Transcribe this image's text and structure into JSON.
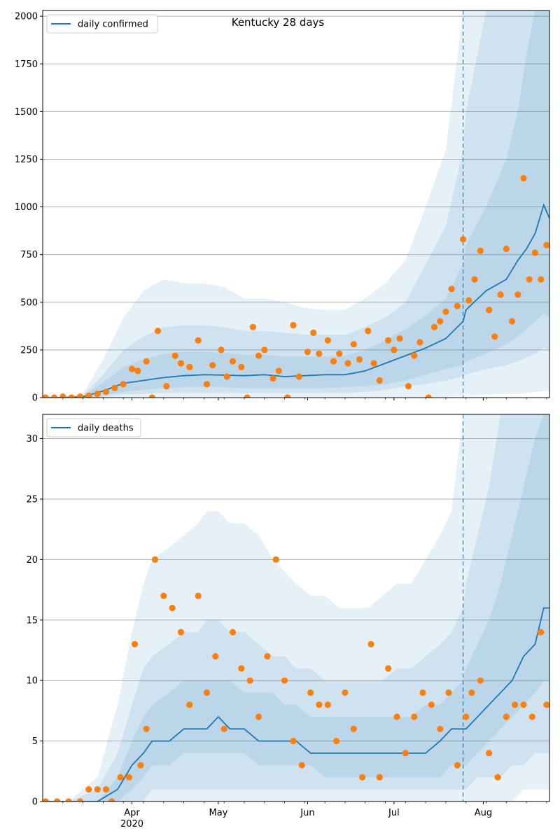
{
  "figure_title": "Kentucky 28 days",
  "colors": {
    "model_line": "#1f77b4",
    "observed_points": "#ff7f0e",
    "band": "#1f77b4",
    "forecast_marker": "#1f77b4",
    "grid": "#b0b0b0"
  },
  "chart_data": [
    {
      "type": "line",
      "title": "Kentucky 28 days",
      "legend": {
        "label": "daily confirmed",
        "placement": "top-left"
      },
      "ylim": [
        0,
        2030
      ],
      "yticks": [
        "0",
        "250",
        "500",
        "750",
        "1000",
        "1250",
        "1500",
        "1750",
        "2000"
      ],
      "xticks": [
        "Apr\n2020",
        "May",
        "Jun",
        "Jul",
        "Aug"
      ],
      "grid": "horizontal",
      "forecast_start": "2020-07-25",
      "model_line": {
        "x": [
          "2020-03-01",
          "2020-03-08",
          "2020-03-15",
          "2020-03-22",
          "2020-03-29",
          "2020-04-05",
          "2020-04-12",
          "2020-04-19",
          "2020-04-26",
          "2020-05-03",
          "2020-05-10",
          "2020-05-17",
          "2020-05-24",
          "2020-05-31",
          "2020-06-07",
          "2020-06-14",
          "2020-06-21",
          "2020-06-28",
          "2020-07-05",
          "2020-07-12",
          "2020-07-19",
          "2020-07-25",
          "2020-07-26",
          "2020-08-02",
          "2020-08-09",
          "2020-08-13",
          "2020-08-16",
          "2020-08-19",
          "2020-08-22",
          "2020-08-24"
        ],
        "y": [
          0,
          0,
          5,
          35,
          75,
          90,
          105,
          115,
          120,
          118,
          115,
          120,
          110,
          115,
          120,
          120,
          140,
          180,
          220,
          260,
          310,
          400,
          460,
          560,
          620,
          720,
          780,
          860,
          1010,
          940
        ]
      },
      "bands": [
        {
          "name": "outer",
          "upper": [
            0,
            5,
            20,
            200,
            420,
            560,
            620,
            600,
            600,
            580,
            520,
            520,
            500,
            470,
            460,
            460,
            520,
            600,
            720,
            1000,
            1300,
            2030,
            2030,
            2030,
            2030,
            2030,
            2030,
            2030,
            2030,
            2030
          ],
          "lower": [
            0,
            0,
            0,
            2,
            5,
            5,
            5,
            5,
            5,
            5,
            5,
            5,
            5,
            5,
            5,
            5,
            5,
            5,
            5,
            5,
            5,
            10,
            10,
            15,
            20,
            20,
            25,
            30,
            35,
            35
          ]
        },
        {
          "name": "middle",
          "upper": [
            0,
            3,
            12,
            120,
            250,
            320,
            370,
            380,
            380,
            370,
            350,
            350,
            340,
            330,
            330,
            330,
            370,
            420,
            500,
            700,
            900,
            1300,
            1500,
            2030,
            2030,
            2030,
            2030,
            2030,
            2030,
            2030
          ],
          "lower": [
            0,
            0,
            0,
            5,
            15,
            20,
            25,
            25,
            25,
            25,
            25,
            25,
            25,
            25,
            25,
            25,
            30,
            40,
            60,
            70,
            90,
            110,
            120,
            150,
            170,
            190,
            210,
            230,
            260,
            250
          ]
        },
        {
          "name": "inner",
          "upper": [
            0,
            2,
            8,
            80,
            160,
            200,
            230,
            240,
            240,
            235,
            225,
            225,
            215,
            215,
            215,
            220,
            250,
            300,
            360,
            430,
            520,
            700,
            800,
            1000,
            1250,
            1500,
            1800,
            2030,
            2030,
            2030
          ],
          "lower": [
            0,
            0,
            0,
            10,
            30,
            40,
            50,
            55,
            55,
            55,
            50,
            50,
            50,
            50,
            50,
            55,
            60,
            70,
            90,
            120,
            150,
            170,
            190,
            230,
            280,
            320,
            360,
            400,
            440,
            420
          ]
        }
      ],
      "observed": {
        "x": [
          "2020-03-02",
          "2020-03-05",
          "2020-03-08",
          "2020-03-11",
          "2020-03-14",
          "2020-03-17",
          "2020-03-20",
          "2020-03-23",
          "2020-03-26",
          "2020-03-29",
          "2020-04-01",
          "2020-04-03",
          "2020-04-06",
          "2020-04-08",
          "2020-04-10",
          "2020-04-13",
          "2020-04-16",
          "2020-04-18",
          "2020-04-21",
          "2020-04-24",
          "2020-04-27",
          "2020-04-29",
          "2020-05-02",
          "2020-05-04",
          "2020-05-06",
          "2020-05-09",
          "2020-05-11",
          "2020-05-13",
          "2020-05-15",
          "2020-05-17",
          "2020-05-20",
          "2020-05-22",
          "2020-05-25",
          "2020-05-27",
          "2020-05-29",
          "2020-06-01",
          "2020-06-03",
          "2020-06-05",
          "2020-06-08",
          "2020-06-10",
          "2020-06-12",
          "2020-06-15",
          "2020-06-17",
          "2020-06-19",
          "2020-06-22",
          "2020-06-24",
          "2020-06-26",
          "2020-06-29",
          "2020-07-01",
          "2020-07-03",
          "2020-07-06",
          "2020-07-08",
          "2020-07-10",
          "2020-07-13",
          "2020-07-15",
          "2020-07-17",
          "2020-07-19",
          "2020-07-21",
          "2020-07-23",
          "2020-07-25",
          "2020-07-27",
          "2020-07-29",
          "2020-07-31",
          "2020-08-03",
          "2020-08-05",
          "2020-08-07",
          "2020-08-09",
          "2020-08-11",
          "2020-08-13",
          "2020-08-15",
          "2020-08-17",
          "2020-08-19",
          "2020-08-21",
          "2020-08-23"
        ],
        "y": [
          0,
          0,
          5,
          0,
          5,
          10,
          20,
          30,
          50,
          70,
          150,
          140,
          190,
          0,
          350,
          60,
          220,
          180,
          160,
          300,
          70,
          170,
          250,
          110,
          190,
          160,
          0,
          370,
          220,
          250,
          100,
          140,
          0,
          380,
          110,
          240,
          340,
          230,
          300,
          190,
          230,
          180,
          280,
          200,
          350,
          180,
          90,
          300,
          250,
          310,
          60,
          220,
          290,
          0,
          370,
          400,
          450,
          570,
          480,
          830,
          510,
          620,
          770,
          460,
          320,
          540,
          780,
          400,
          540,
          1150,
          620,
          760,
          620,
          800
        ]
      }
    },
    {
      "type": "line",
      "title": "",
      "legend": {
        "label": "daily deaths",
        "placement": "top-left"
      },
      "ylim": [
        0,
        32
      ],
      "yticks": [
        "0",
        "5",
        "10",
        "15",
        "20",
        "25",
        "30"
      ],
      "xticks": [
        "Apr\n2020",
        "May",
        "Jun",
        "Jul",
        "Aug"
      ],
      "grid": "horizontal",
      "forecast_start": "2020-07-25",
      "model_line": {
        "x": [
          "2020-03-01",
          "2020-03-10",
          "2020-03-20",
          "2020-03-27",
          "2020-04-01",
          "2020-04-05",
          "2020-04-08",
          "2020-04-14",
          "2020-04-19",
          "2020-04-24",
          "2020-04-27",
          "2020-05-01",
          "2020-05-05",
          "2020-05-10",
          "2020-05-15",
          "2020-05-20",
          "2020-05-24",
          "2020-05-28",
          "2020-06-02",
          "2020-06-07",
          "2020-06-12",
          "2020-06-17",
          "2020-06-22",
          "2020-06-27",
          "2020-07-02",
          "2020-07-07",
          "2020-07-12",
          "2020-07-17",
          "2020-07-21",
          "2020-07-25",
          "2020-07-26",
          "2020-07-30",
          "2020-08-03",
          "2020-08-07",
          "2020-08-11",
          "2020-08-15",
          "2020-08-19",
          "2020-08-22",
          "2020-08-24"
        ],
        "y": [
          0,
          0,
          0,
          1,
          3,
          4,
          5,
          5,
          6,
          6,
          6,
          7,
          6,
          6,
          5,
          5,
          5,
          5,
          4,
          4,
          4,
          4,
          4,
          4,
          4,
          4,
          4,
          5,
          6,
          6,
          6,
          7,
          8,
          9,
          10,
          12,
          13,
          16,
          16
        ]
      },
      "bands": [
        {
          "name": "outer",
          "upper": [
            0,
            0,
            2,
            8,
            14,
            18,
            20,
            21,
            22,
            23,
            24,
            24,
            23,
            23,
            22,
            20,
            19,
            18,
            17,
            17,
            16,
            16,
            16,
            17,
            18,
            18,
            20,
            22,
            24,
            32,
            32,
            32,
            32,
            32,
            32,
            32,
            32,
            32,
            32
          ],
          "lower": [
            0,
            0,
            0,
            0,
            0,
            0,
            0,
            0,
            0,
            0,
            0,
            0,
            0,
            0,
            0,
            0,
            0,
            0,
            0,
            0,
            0,
            0,
            0,
            0,
            0,
            0,
            0,
            0,
            0,
            0,
            0,
            0,
            0,
            0,
            0,
            1,
            1,
            1,
            1
          ]
        },
        {
          "name": "middle",
          "upper": [
            0,
            0,
            1,
            4,
            8,
            11,
            12,
            13,
            14,
            14,
            15,
            15,
            14,
            14,
            13,
            12,
            12,
            11,
            11,
            10,
            10,
            10,
            10,
            10,
            11,
            11,
            12,
            13,
            14,
            16,
            18,
            22,
            26,
            32,
            32,
            32,
            32,
            32,
            32
          ],
          "lower": [
            0,
            0,
            0,
            0,
            0,
            0,
            1,
            1,
            1,
            1,
            1,
            1,
            1,
            1,
            1,
            1,
            1,
            1,
            1,
            1,
            1,
            1,
            1,
            1,
            1,
            1,
            1,
            1,
            1,
            1,
            1,
            2,
            2,
            2,
            3,
            3,
            4,
            4,
            4
          ]
        },
        {
          "name": "inner",
          "upper": [
            0,
            0,
            0,
            2,
            5,
            7,
            8,
            9,
            10,
            10,
            10,
            10,
            10,
            9,
            9,
            9,
            8,
            8,
            7,
            7,
            7,
            7,
            7,
            7,
            7,
            7,
            8,
            8,
            9,
            10,
            11,
            13,
            15,
            18,
            22,
            26,
            30,
            32,
            32
          ],
          "lower": [
            0,
            0,
            0,
            0,
            1,
            2,
            3,
            3,
            4,
            4,
            4,
            4,
            4,
            4,
            3,
            3,
            3,
            3,
            3,
            2,
            2,
            2,
            2,
            2,
            2,
            2,
            2,
            2,
            3,
            3,
            3,
            4,
            5,
            6,
            7,
            8,
            9,
            10,
            10
          ]
        }
      ],
      "observed": {
        "x": [
          "2020-03-02",
          "2020-03-06",
          "2020-03-10",
          "2020-03-14",
          "2020-03-17",
          "2020-03-20",
          "2020-03-23",
          "2020-03-25",
          "2020-03-28",
          "2020-03-31",
          "2020-04-02",
          "2020-04-04",
          "2020-04-06",
          "2020-04-09",
          "2020-04-12",
          "2020-04-15",
          "2020-04-18",
          "2020-04-21",
          "2020-04-24",
          "2020-04-27",
          "2020-04-30",
          "2020-05-03",
          "2020-05-06",
          "2020-05-09",
          "2020-05-12",
          "2020-05-15",
          "2020-05-18",
          "2020-05-21",
          "2020-05-24",
          "2020-05-27",
          "2020-05-30",
          "2020-06-02",
          "2020-06-05",
          "2020-06-08",
          "2020-06-11",
          "2020-06-14",
          "2020-06-17",
          "2020-06-20",
          "2020-06-23",
          "2020-06-26",
          "2020-06-29",
          "2020-07-02",
          "2020-07-05",
          "2020-07-08",
          "2020-07-11",
          "2020-07-14",
          "2020-07-17",
          "2020-07-20",
          "2020-07-23",
          "2020-07-26",
          "2020-07-28",
          "2020-07-31",
          "2020-08-03",
          "2020-08-06",
          "2020-08-09",
          "2020-08-12",
          "2020-08-15",
          "2020-08-18",
          "2020-08-21",
          "2020-08-23"
        ],
        "y": [
          0,
          0,
          0,
          0,
          1,
          1,
          1,
          0,
          2,
          2,
          13,
          3,
          6,
          20,
          17,
          16,
          14,
          8,
          17,
          9,
          12,
          6,
          14,
          11,
          10,
          7,
          12,
          20,
          10,
          5,
          3,
          9,
          8,
          8,
          5,
          9,
          6,
          2,
          13,
          2,
          11,
          7,
          4,
          7,
          9,
          8,
          6,
          9,
          3,
          7,
          9,
          10,
          4,
          2,
          7,
          8,
          8,
          7,
          14,
          8
        ]
      }
    }
  ]
}
